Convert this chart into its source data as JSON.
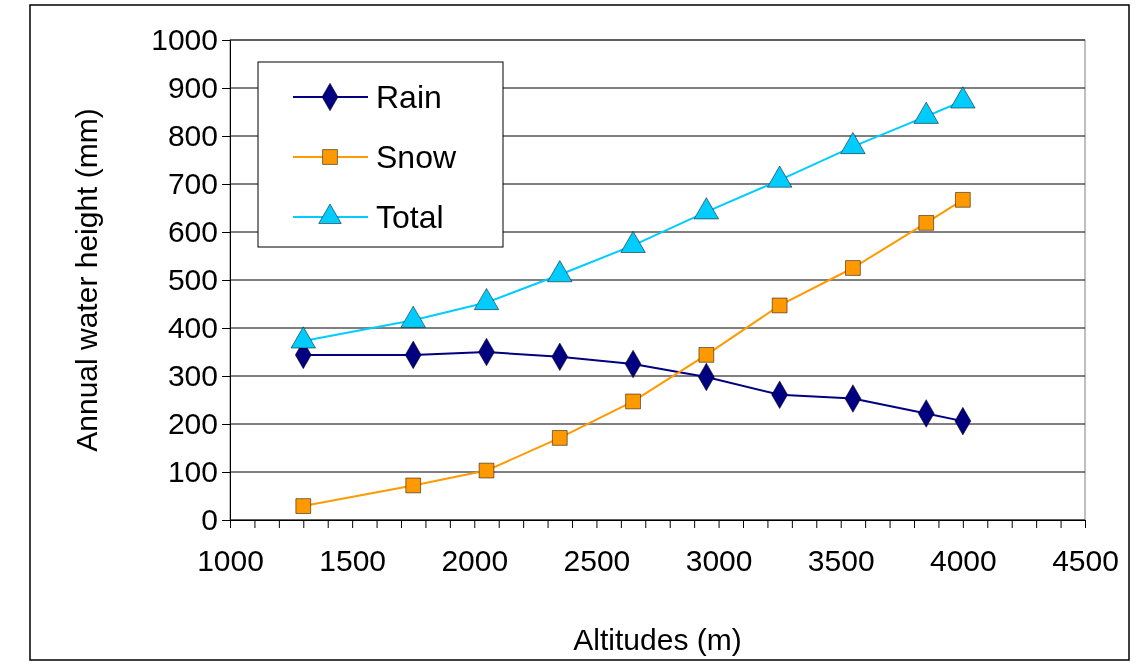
{
  "chart_data": {
    "type": "line",
    "xlabel": "Altitudes (m)",
    "ylabel": "Annual water height (mm)",
    "x": [
      1300,
      1750,
      2050,
      2350,
      2650,
      2950,
      3250,
      3550,
      3850,
      4000
    ],
    "series": [
      {
        "name": "Rain",
        "color": "#000080",
        "marker": "diamond",
        "values": [
          344,
          344,
          350,
          340,
          325,
          298,
          261,
          253,
          222,
          206
        ]
      },
      {
        "name": "Snow",
        "color": "#ff9900",
        "marker": "square",
        "values": [
          29,
          72,
          103,
          171,
          247,
          344,
          447,
          525,
          619,
          667
        ]
      },
      {
        "name": "Total",
        "color": "#00ccff",
        "marker": "triangle",
        "values": [
          373,
          416,
          453,
          511,
          572,
          642,
          708,
          778,
          841,
          873
        ]
      }
    ],
    "xlim": [
      1000,
      4500
    ],
    "xticks": [
      1000,
      {
        "value": 1100,
        "label": null
      },
      {
        "value": 1200,
        "label": null
      },
      {
        "value": 1300,
        "label": null
      },
      {
        "value": 1400,
        "label": null
      },
      1500,
      {
        "value": 1600,
        "label": null
      },
      {
        "value": 1700,
        "label": null
      },
      {
        "value": 1800,
        "label": null
      },
      {
        "value": 1900,
        "label": null
      },
      2000,
      {
        "value": 2100,
        "label": null
      },
      {
        "value": 2200,
        "label": null
      },
      {
        "value": 2300,
        "label": null
      },
      {
        "value": 2400,
        "label": null
      },
      2500,
      {
        "value": 2600,
        "label": null
      },
      {
        "value": 2700,
        "label": null
      },
      {
        "value": 2800,
        "label": null
      },
      {
        "value": 2900,
        "label": null
      },
      3000,
      {
        "value": 3100,
        "label": null
      },
      {
        "value": 3200,
        "label": null
      },
      {
        "value": 3300,
        "label": null
      },
      {
        "value": 3400,
        "label": null
      },
      3500,
      {
        "value": 3600,
        "label": null
      },
      {
        "value": 3700,
        "label": null
      },
      {
        "value": 3800,
        "label": null
      },
      {
        "value": 3900,
        "label": null
      },
      4000,
      {
        "value": 4100,
        "label": null
      },
      {
        "value": 4200,
        "label": null
      },
      {
        "value": 4300,
        "label": null
      },
      {
        "value": 4400,
        "label": null
      },
      4500
    ],
    "ylim": [
      0,
      1000
    ],
    "yticks": [
      0,
      100,
      200,
      300,
      400,
      500,
      600,
      700,
      800,
      900,
      1000
    ],
    "grid": "y",
    "legend": "top left",
    "line_style": "solid"
  }
}
